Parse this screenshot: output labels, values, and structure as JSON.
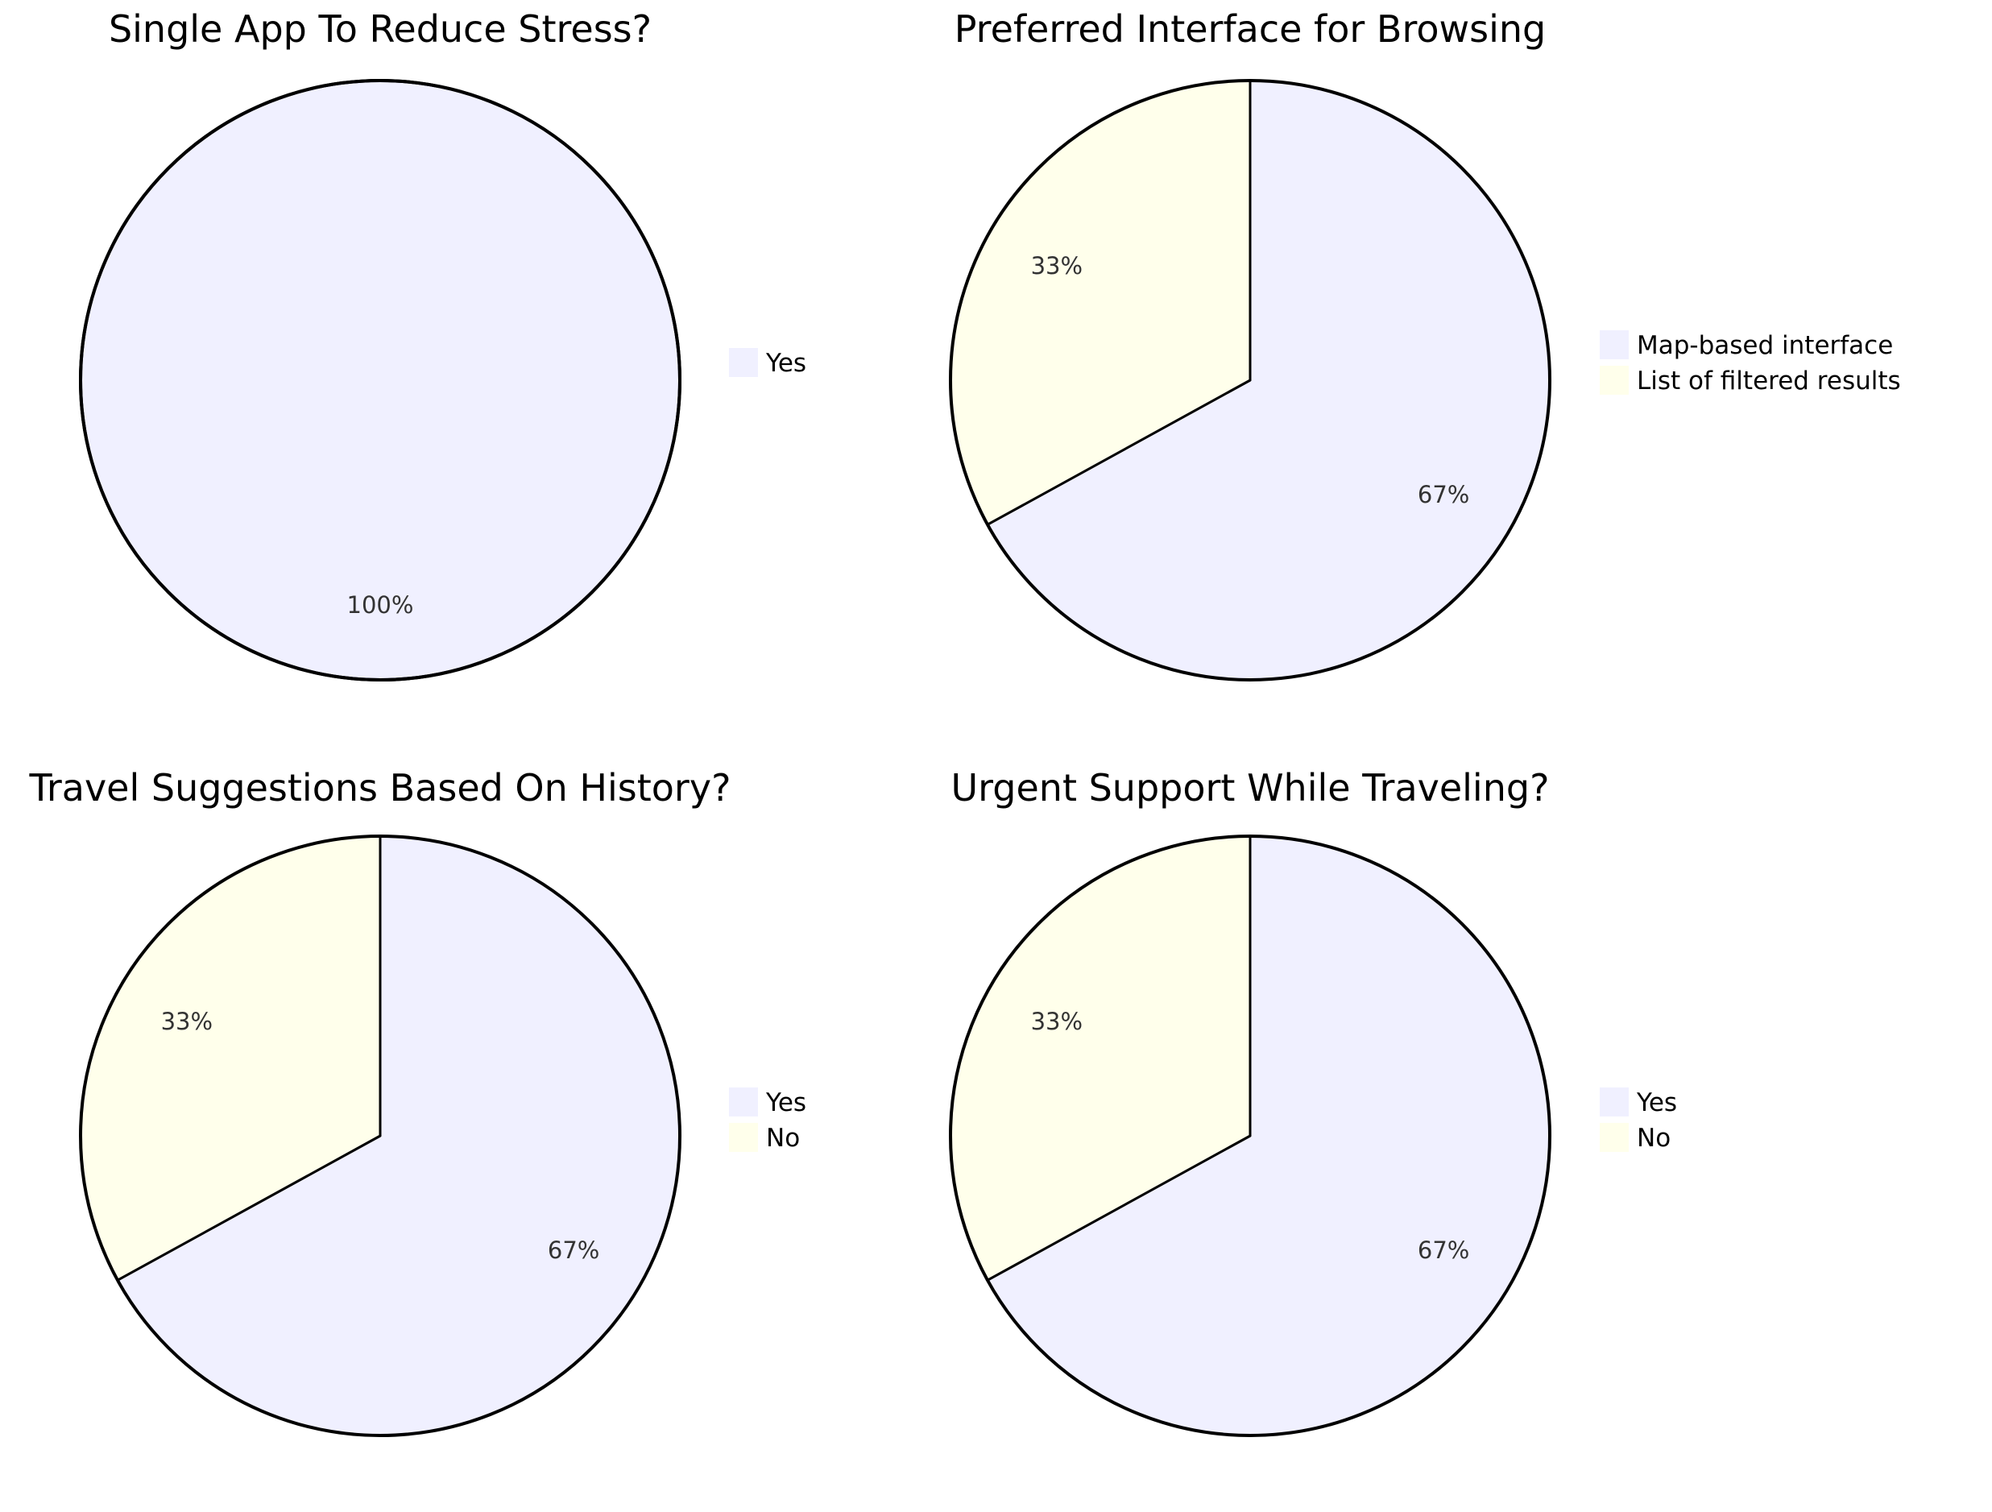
{
  "colors": {
    "slice_1": "#f0f0ff",
    "slice_2": "#ffffeb",
    "stroke": "#000000"
  },
  "chart_data": [
    {
      "type": "pie",
      "title": "Single App To Reduce Stress?",
      "labels": [
        "Yes"
      ],
      "values": [
        100
      ],
      "percent_labels": [
        "100%"
      ],
      "legend": [
        "Yes"
      ],
      "legend_placement": "right"
    },
    {
      "type": "pie",
      "title": "Preferred Interface for Browsing",
      "labels": [
        "Map-based interface",
        "List of filtered results"
      ],
      "values": [
        67,
        33
      ],
      "percent_labels": [
        "67%",
        "33%"
      ],
      "legend": [
        "Map-based interface",
        "List of filtered results"
      ],
      "legend_placement": "right"
    },
    {
      "type": "pie",
      "title": "Travel Suggestions Based On History?",
      "labels": [
        "Yes",
        "No"
      ],
      "values": [
        67,
        33
      ],
      "percent_labels": [
        "67%",
        "33%"
      ],
      "legend": [
        "Yes",
        "No"
      ],
      "legend_placement": "right"
    },
    {
      "type": "pie",
      "title": "Urgent Support While Traveling?",
      "labels": [
        "Yes",
        "No"
      ],
      "values": [
        67,
        33
      ],
      "percent_labels": [
        "67%",
        "33%"
      ],
      "legend": [
        "Yes",
        "No"
      ],
      "legend_placement": "right"
    }
  ]
}
